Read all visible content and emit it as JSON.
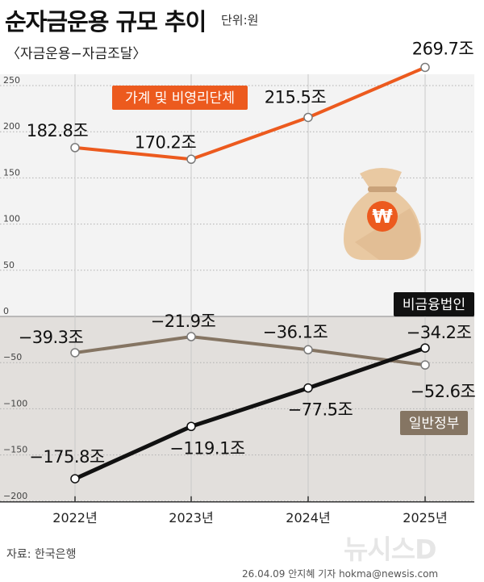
{
  "header": {
    "title": "순자금운용 규모 추이",
    "unit": "단위:원",
    "subtitle": "〈자금운용−자금조달〉"
  },
  "footer": {
    "source": "자료: 한국은행",
    "credit": "26.04.09 안지혜 기자 hokma@newsis.com",
    "logo": "뉴시스D"
  },
  "colors": {
    "household": "#ec5a1e",
    "nonfinancial": "#111111",
    "government": "#857563",
    "negative_band": "#e2dfdc",
    "positive_band": "#f3f3f3",
    "grid": "#b0b0b0"
  },
  "icons": {
    "money_bag": "won-money-bag-icon"
  },
  "chart_data": {
    "type": "line",
    "title": "순자금운용 규모 추이",
    "unit": "단위:원",
    "categories": [
      "2022년",
      "2023년",
      "2024년",
      "2025년"
    ],
    "ylim": [
      -200,
      270
    ],
    "yticks": [
      250,
      200,
      150,
      100,
      50,
      0,
      -50,
      -100,
      -150,
      -200
    ],
    "grid": true,
    "series": [
      {
        "key": "household",
        "name": "가계 및 비영리단체",
        "values": [
          182.8,
          170.2,
          215.5,
          269.7
        ],
        "labels": [
          "182.8조",
          "170.2조",
          "215.5조",
          "269.7조"
        ],
        "color": "#ec5a1e"
      },
      {
        "key": "nonfinancial",
        "name": "비금융법인",
        "values": [
          -175.8,
          -119.1,
          -77.5,
          -34.2
        ],
        "labels": [
          "−175.8조",
          "−119.1조",
          "−77.5조",
          "−34.2조"
        ],
        "color": "#111111"
      },
      {
        "key": "government",
        "name": "일반정부",
        "values": [
          -39.3,
          -21.9,
          -36.1,
          -52.6
        ],
        "labels": [
          "−39.3조",
          "−21.9조",
          "−36.1조",
          "−52.6조"
        ],
        "color": "#857563"
      }
    ]
  }
}
